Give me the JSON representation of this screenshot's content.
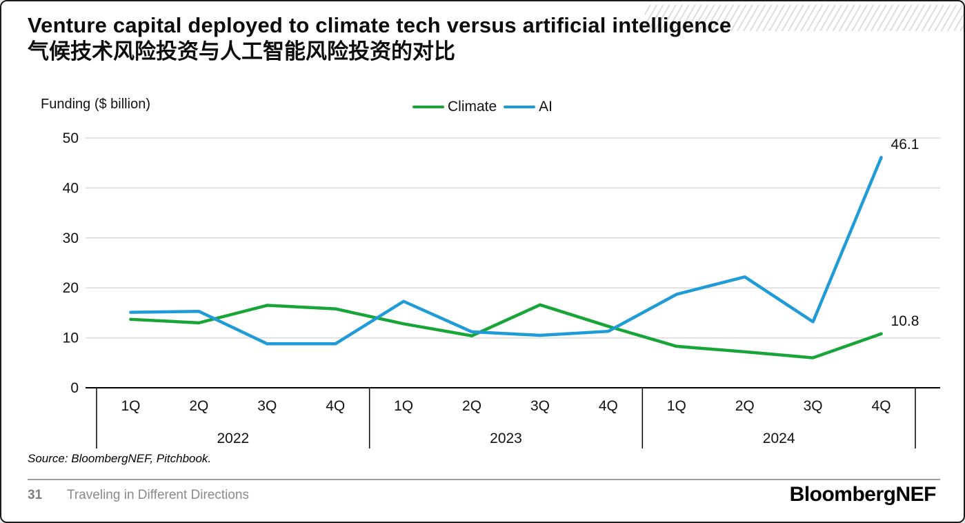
{
  "slide": {
    "title_en": "Venture capital deployed to climate tech versus artificial intelligence",
    "title_zh": "气候技术风险投资与人工智能风险投资的对比",
    "source": "Source: BloombergNEF, Pitchbook.",
    "footer": {
      "page_number": "31",
      "section": "Traveling in Different Directions",
      "brand": "BloombergNEF"
    }
  },
  "chart_data": {
    "type": "line",
    "title": "Venture capital deployed to climate tech versus artificial intelligence",
    "ylabel": "Funding ($ billion)",
    "xlabel": "",
    "ylim": [
      0,
      50
    ],
    "yticks": [
      0,
      10,
      20,
      30,
      40,
      50
    ],
    "grid": true,
    "legend_position": "top-center",
    "categories": [
      "1Q",
      "2Q",
      "3Q",
      "4Q",
      "1Q",
      "2Q",
      "3Q",
      "4Q",
      "1Q",
      "2Q",
      "3Q",
      "4Q"
    ],
    "year_groups": [
      {
        "label": "2022",
        "span": 4
      },
      {
        "label": "2023",
        "span": 4
      },
      {
        "label": "2024",
        "span": 4
      }
    ],
    "series": [
      {
        "name": "Climate",
        "color": "#18a538",
        "values": [
          13.7,
          13.0,
          16.5,
          15.8,
          12.8,
          10.4,
          16.6,
          12.3,
          8.3,
          7.2,
          6.0,
          10.8
        ]
      },
      {
        "name": "AI",
        "color": "#1f9bd7",
        "values": [
          15.1,
          15.3,
          8.8,
          8.8,
          17.3,
          11.2,
          10.5,
          11.3,
          18.7,
          22.2,
          13.2,
          46.1
        ]
      }
    ],
    "end_labels": [
      {
        "series": "AI",
        "text": "46.1"
      },
      {
        "series": "Climate",
        "text": "10.8"
      }
    ],
    "colors": {
      "axis": "#000000",
      "gridline": "#d9d9d9"
    }
  }
}
